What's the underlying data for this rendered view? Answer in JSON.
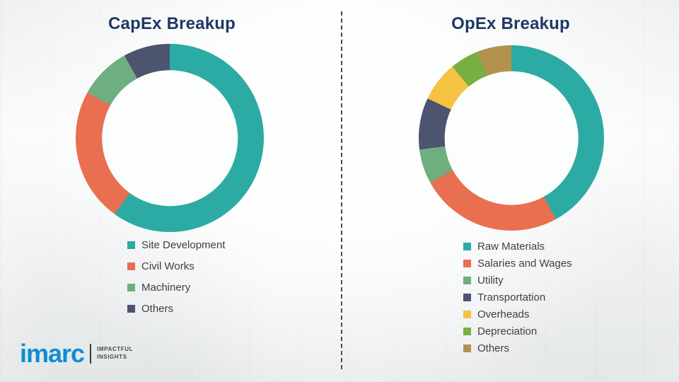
{
  "logo": {
    "brand": "imarc",
    "tagline_line1": "IMPACTFUL",
    "tagline_line2": "INSIGHTS"
  },
  "colors": {
    "title": "#1F3864",
    "teal": "#2BABA3",
    "orange": "#E96F51",
    "sea_green": "#6FAE7F",
    "dark_slate": "#4D5470",
    "yellow": "#F5C342",
    "bright_green": "#76B041",
    "olive": "#B2924E"
  },
  "chart_data": [
    {
      "type": "pie",
      "subtype": "donut",
      "title": "CapEx Breakup",
      "categories": [
        "Site Development",
        "Civil Works",
        "Machinery",
        "Others"
      ],
      "values": [
        60,
        23,
        9,
        8
      ],
      "colors": [
        "#2BABA3",
        "#E96F51",
        "#6FAE7F",
        "#4D5470"
      ],
      "legend_position": "bottom-left",
      "start_angle_deg": 0,
      "direction": "clockwise"
    },
    {
      "type": "pie",
      "subtype": "donut",
      "title": "OpEx Breakup",
      "categories": [
        "Raw Materials",
        "Salaries and Wages",
        "Utility",
        "Transportation",
        "Overheads",
        "Depreciation",
        "Others"
      ],
      "values": [
        42,
        25,
        6,
        9,
        7,
        5,
        6
      ],
      "colors": [
        "#2BABA3",
        "#E96F51",
        "#6FAE7F",
        "#4D5470",
        "#F5C342",
        "#76B041",
        "#B2924E"
      ],
      "legend_position": "bottom-left",
      "start_angle_deg": 0,
      "direction": "clockwise"
    }
  ]
}
